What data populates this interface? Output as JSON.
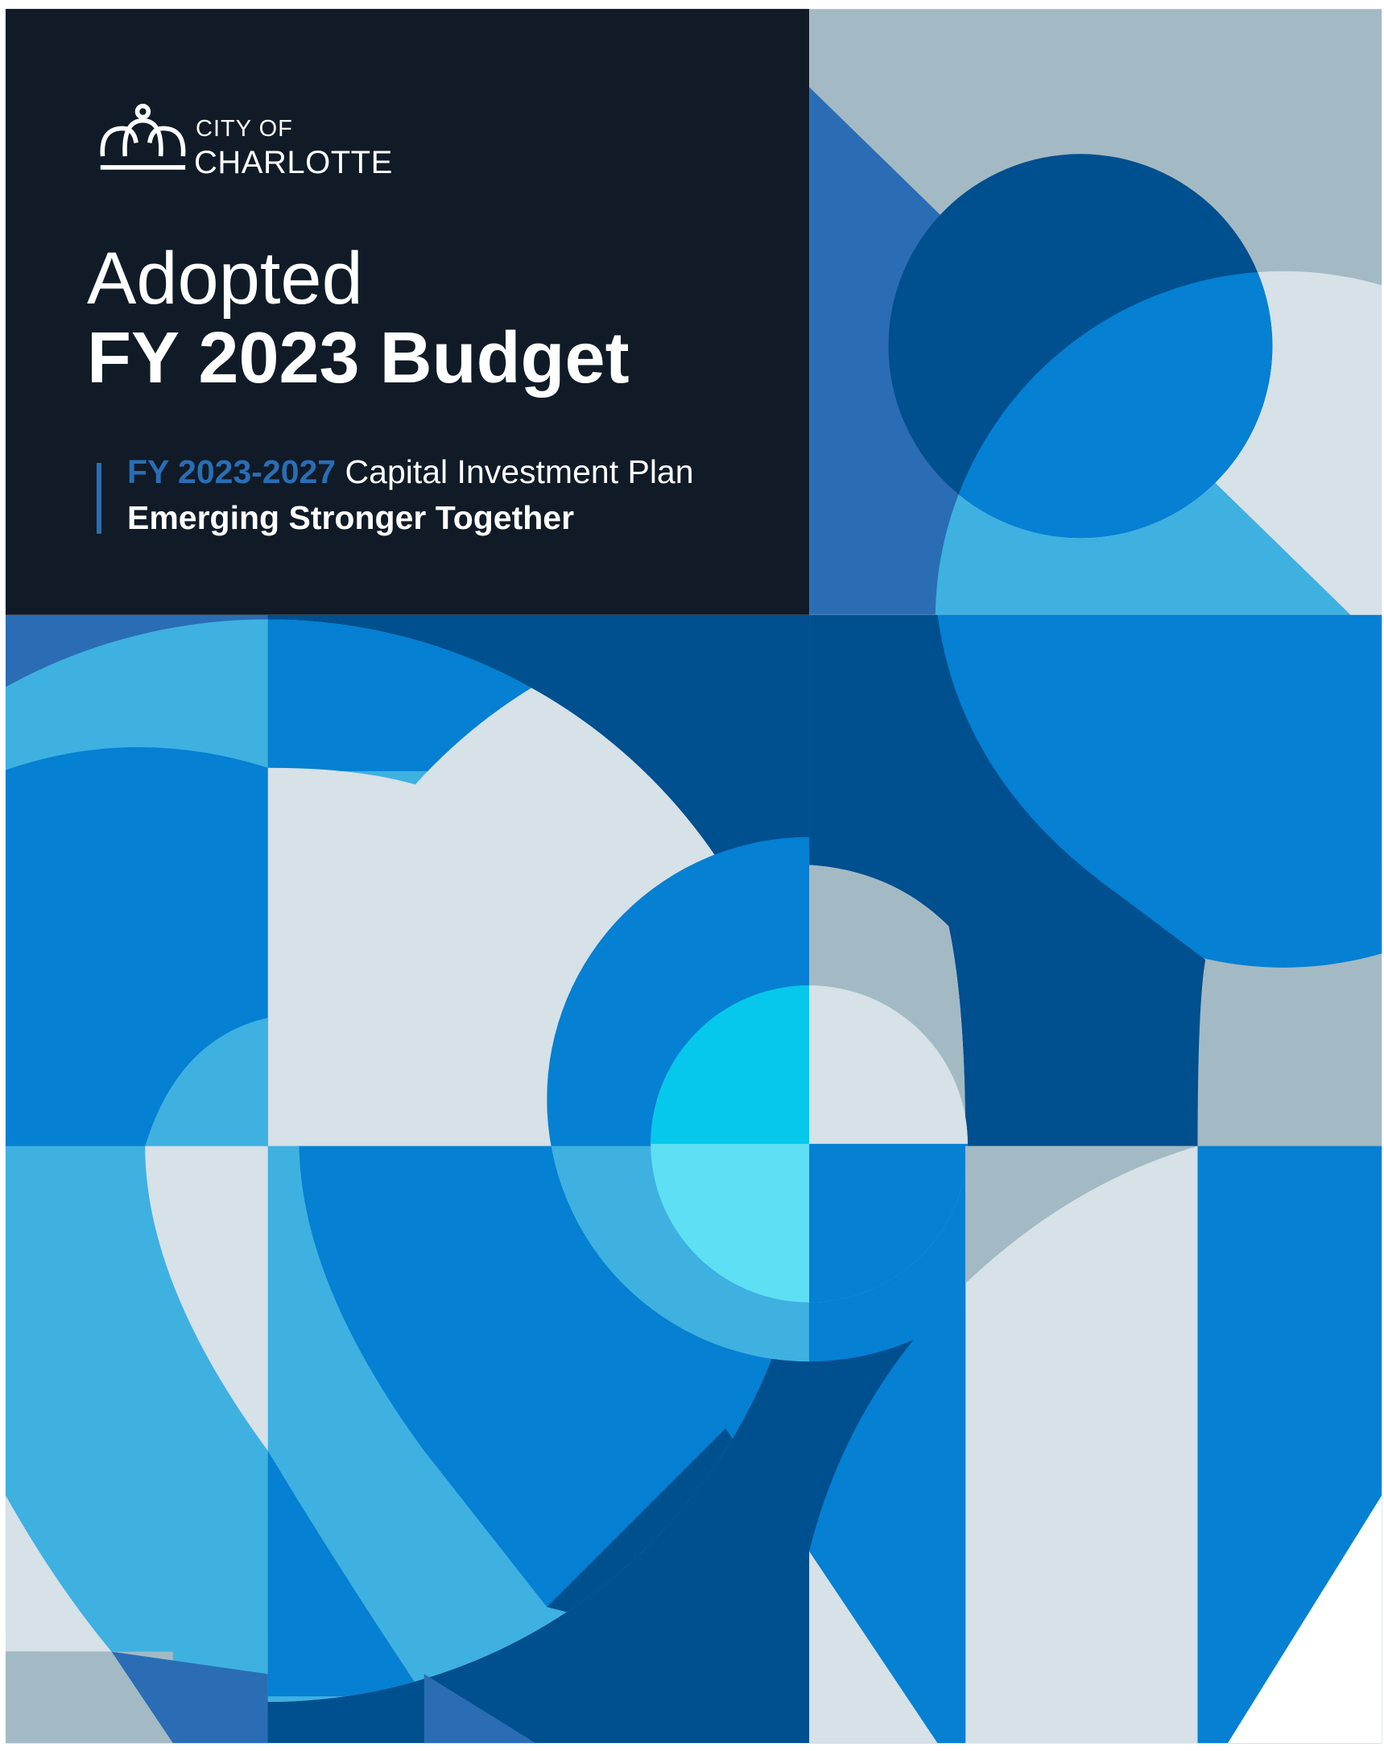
{
  "logo": {
    "line1": "CITY OF",
    "line2": "CHARLOTTE"
  },
  "title": {
    "line1": "Adopted",
    "line2": "FY 2023 Budget"
  },
  "subtitle": {
    "highlight": "FY 2023-2027",
    "text": "Capital Investment Plan",
    "tagline": "Emerging Stronger Together"
  }
}
